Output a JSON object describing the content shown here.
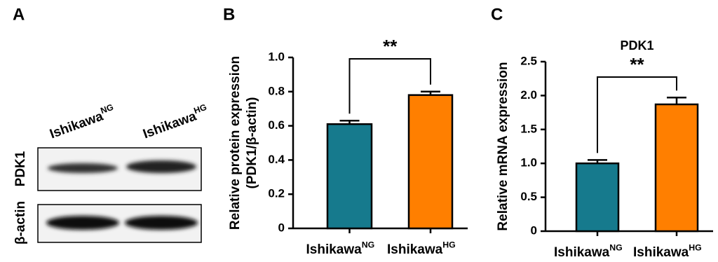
{
  "blot": {
    "panel": "A",
    "lanes": [
      "Ishikawa",
      "Ishikawa"
    ],
    "lane_superscripts": [
      "NG",
      "HG"
    ],
    "rows": [
      "PDK1",
      "β-actin"
    ]
  },
  "chart_data": [
    {
      "type": "bar",
      "panel": "B",
      "y_label": [
        "Relative protein expression",
        "(PDK1/β-actin)"
      ],
      "categories": [
        "Ishikawa",
        "Ishikawa"
      ],
      "category_superscripts": [
        "NG",
        "HG"
      ],
      "values": [
        0.61,
        0.78
      ],
      "errors": [
        0.02,
        0.02
      ],
      "colors": [
        "#167a8d",
        "#ff7f00"
      ],
      "ylim": [
        0,
        1
      ],
      "yticks": [
        0,
        0.2,
        0.4,
        0.6,
        0.8,
        {
          "value": 1,
          "label": "1.0"
        }
      ],
      "annotation": "**"
    },
    {
      "type": "bar",
      "panel": "C",
      "title": "PDK1",
      "y_label": [
        "Relative mRNA expression"
      ],
      "categories": [
        "Ishikawa",
        "Ishikawa"
      ],
      "category_superscripts": [
        "NG",
        "HG"
      ],
      "values": [
        1.0,
        1.87
      ],
      "errors": [
        0.05,
        0.1
      ],
      "colors": [
        "#167a8d",
        "#ff7f00"
      ],
      "ylim": [
        0,
        2.5
      ],
      "yticks": [
        0,
        0.5,
        {
          "value": 1,
          "label": "1.0"
        },
        1.5,
        {
          "value": 2,
          "label": "2.0"
        },
        2.5
      ],
      "annotation": "**"
    }
  ]
}
